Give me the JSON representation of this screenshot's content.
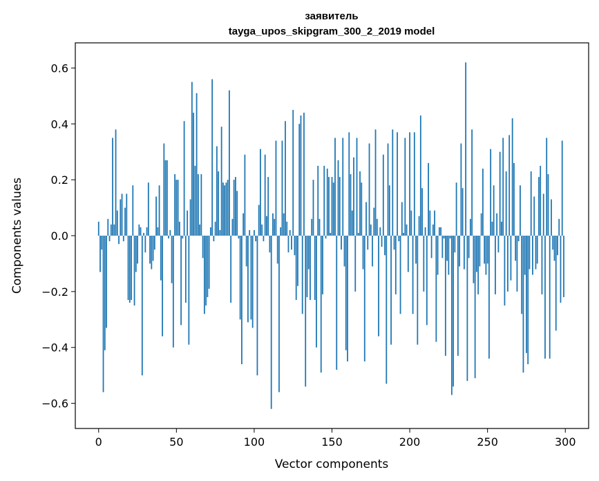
{
  "chart_data": {
    "type": "bar",
    "title": "заявитель",
    "subtitle": "tayga_upos_skipgram_300_2_2019 model",
    "xlabel": "Vector components",
    "ylabel": "Components values",
    "xlim": [
      -15,
      315
    ],
    "ylim": [
      -0.69,
      0.69
    ],
    "xticks": [
      0,
      50,
      100,
      150,
      200,
      250,
      300
    ],
    "yticks": [
      -0.6,
      -0.4,
      -0.2,
      0.0,
      0.2,
      0.4,
      0.6
    ],
    "ytick_labels": [
      "−0.6",
      "−0.4",
      "−0.2",
      "0.0",
      "0.2",
      "0.4",
      "0.6"
    ],
    "xtick_labels": [
      "0",
      "50",
      "100",
      "150",
      "200",
      "250",
      "300"
    ],
    "bar_color": "#1f77b4",
    "grid": false,
    "values": [
      0.05,
      -0.13,
      -0.05,
      -0.56,
      -0.41,
      -0.33,
      0.06,
      -0.02,
      0.04,
      0.35,
      0.04,
      0.38,
      0.09,
      -0.03,
      0.13,
      0.15,
      -0.02,
      0.1,
      0.15,
      -0.23,
      -0.24,
      -0.23,
      0.18,
      -0.25,
      -0.13,
      -0.1,
      0.04,
      0.03,
      -0.5,
      0.01,
      -0.06,
      0.03,
      0.19,
      -0.1,
      -0.12,
      -0.09,
      -0.05,
      0.14,
      0.03,
      0.18,
      -0.16,
      -0.36,
      0.33,
      0.27,
      0.27,
      -0.01,
      0.02,
      -0.17,
      -0.4,
      0.22,
      0.2,
      0.2,
      0.05,
      -0.32,
      -0.01,
      0.41,
      -0.24,
      0.09,
      -0.39,
      0.13,
      0.55,
      0.44,
      0.25,
      0.51,
      0.22,
      0.04,
      0.22,
      -0.08,
      -0.28,
      -0.25,
      -0.22,
      -0.19,
      0.03,
      0.56,
      -0.02,
      0.05,
      0.32,
      0.23,
      0.02,
      0.39,
      0.19,
      0.18,
      0.19,
      0.2,
      0.52,
      -0.24,
      0.06,
      0.2,
      0.21,
      0.16,
      -0.01,
      -0.3,
      -0.46,
      0.08,
      0.29,
      -0.11,
      -0.31,
      0.02,
      -0.3,
      -0.33,
      0.02,
      -0.02,
      -0.5,
      0.11,
      0.31,
      0.04,
      -0.02,
      0.29,
      0.07,
      0.21,
      -0.06,
      -0.62,
      0.08,
      0.06,
      0.34,
      -0.1,
      -0.56,
      0.03,
      0.34,
      0.08,
      0.41,
      0.05,
      -0.06,
      0.02,
      -0.05,
      0.45,
      -0.07,
      -0.23,
      -0.18,
      0.4,
      0.43,
      -0.28,
      0.44,
      -0.54,
      -0.22,
      -0.12,
      -0.23,
      0.06,
      0.2,
      -0.23,
      -0.4,
      0.25,
      0.06,
      -0.49,
      -0.21,
      0.25,
      -0.01,
      0.24,
      0.21,
      0.01,
      0.21,
      0.19,
      0.35,
      -0.48,
      0.27,
      0.21,
      -0.05,
      0.35,
      -0.11,
      -0.41,
      -0.45,
      0.37,
      0.22,
      0.09,
      0.28,
      -0.2,
      0.35,
      0.01,
      0.23,
      0.19,
      -0.12,
      -0.45,
      0.12,
      -0.05,
      0.33,
      0.04,
      -0.11,
      0.1,
      0.38,
      0.06,
      -0.36,
      0.03,
      -0.04,
      0.29,
      -0.07,
      -0.53,
      0.33,
      0.18,
      -0.39,
      0.38,
      -0.05,
      -0.21,
      0.37,
      -0.02,
      -0.28,
      0.12,
      0.01,
      0.35,
      0.04,
      -0.13,
      0.37,
      0.09,
      -0.28,
      0.37,
      -0.1,
      -0.39,
      0.07,
      0.43,
      0.17,
      -0.2,
      0.03,
      -0.32,
      0.26,
      0.09,
      -0.08,
      0.04,
      0.09,
      -0.38,
      -0.14,
      0.03,
      0.03,
      -0.08,
      -0.01,
      -0.43,
      -0.09,
      -0.14,
      -0.01,
      -0.57,
      -0.54,
      -0.06,
      0.19,
      -0.43,
      -0.11,
      0.33,
      0.17,
      -0.12,
      0.62,
      -0.52,
      -0.08,
      0.06,
      0.38,
      -0.17,
      -0.51,
      -0.13,
      -0.21,
      -0.11,
      0.08,
      0.24,
      -0.1,
      -0.14,
      -0.1,
      -0.44,
      0.31,
      0.05,
      0.18,
      -0.21,
      0.08,
      -0.06,
      0.3,
      0.05,
      0.35,
      -0.25,
      0.23,
      -0.2,
      0.36,
      -0.16,
      0.42,
      0.26,
      -0.09,
      -0.2,
      -0.02,
      0.18,
      -0.28,
      -0.49,
      -0.14,
      -0.42,
      -0.46,
      -0.12,
      0.23,
      -0.14,
      0.14,
      -0.12,
      -0.1,
      0.21,
      0.25,
      -0.21,
      0.15,
      -0.44,
      0.35,
      0.22,
      -0.44,
      0.13,
      -0.05,
      -0.09,
      -0.34,
      -0.07,
      0.06,
      -0.24,
      0.34,
      -0.22
    ]
  }
}
